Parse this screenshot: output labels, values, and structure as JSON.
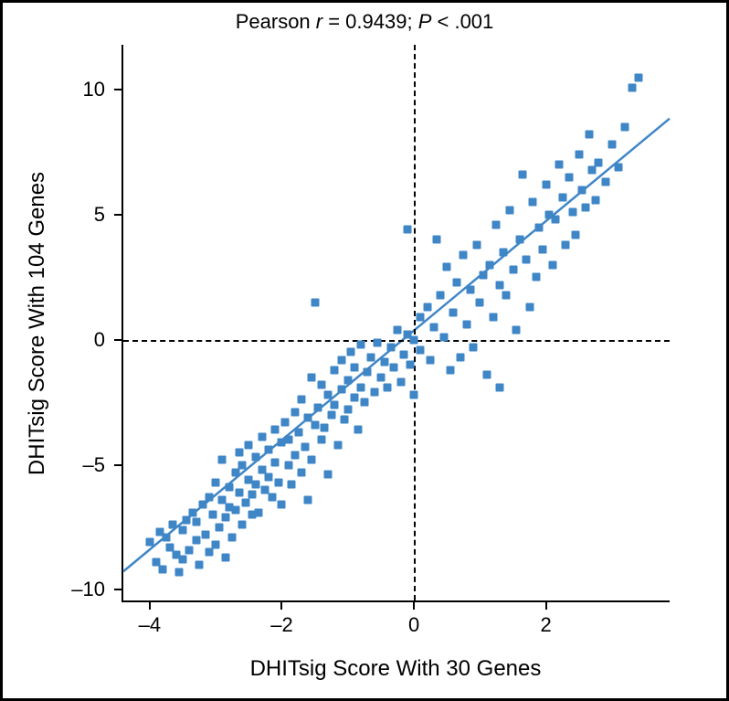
{
  "chart": {
    "type": "scatter",
    "title_parts": {
      "prefix": "Pearson ",
      "r_symbol": "r",
      "r_equals": " = 0.9439; ",
      "p_symbol": "P",
      "p_rest": " < .001"
    },
    "xlabel": "DHITsig Score With 30 Genes",
    "ylabel": "DHITsig Score With 104 Genes",
    "xlim": [
      -4.4,
      3.9
    ],
    "ylim": [
      -10.5,
      11.8
    ],
    "xticks": [
      -4,
      -2,
      0,
      2
    ],
    "yticks": [
      -10,
      -5,
      0,
      5,
      10
    ],
    "label_fontsize": 24,
    "tick_fontsize": 22,
    "title_fontsize": 22,
    "background_color": "#ffffff",
    "axis_color": "#000000",
    "marker_color": "#3f86c7",
    "marker_size": 9,
    "line_color": "#3f86c7",
    "line_width": 2.5,
    "dashed_color": "#000000",
    "regression": {
      "slope": 2.19,
      "intercept": 0.3
    },
    "points": [
      [
        -4.0,
        -8.1
      ],
      [
        -3.9,
        -8.9
      ],
      [
        -3.85,
        -7.7
      ],
      [
        -3.8,
        -9.2
      ],
      [
        -3.75,
        -7.9
      ],
      [
        -3.7,
        -8.3
      ],
      [
        -3.65,
        -7.4
      ],
      [
        -3.6,
        -8.6
      ],
      [
        -3.55,
        -9.3
      ],
      [
        -3.5,
        -7.6
      ],
      [
        -3.5,
        -8.8
      ],
      [
        -3.45,
        -7.2
      ],
      [
        -3.4,
        -8.4
      ],
      [
        -3.35,
        -6.9
      ],
      [
        -3.3,
        -8.0
      ],
      [
        -3.3,
        -7.3
      ],
      [
        -3.25,
        -9.0
      ],
      [
        -3.2,
        -6.6
      ],
      [
        -3.15,
        -7.8
      ],
      [
        -3.1,
        -6.3
      ],
      [
        -3.1,
        -8.5
      ],
      [
        -3.05,
        -7.0
      ],
      [
        -3.0,
        -5.7
      ],
      [
        -3.0,
        -8.2
      ],
      [
        -2.95,
        -7.5
      ],
      [
        -2.9,
        -6.4
      ],
      [
        -2.9,
        -4.8
      ],
      [
        -2.85,
        -7.1
      ],
      [
        -2.85,
        -8.7
      ],
      [
        -2.8,
        -5.9
      ],
      [
        -2.8,
        -6.7
      ],
      [
        -2.75,
        -7.9
      ],
      [
        -2.7,
        -5.3
      ],
      [
        -2.7,
        -6.8
      ],
      [
        -2.65,
        -4.5
      ],
      [
        -2.65,
        -6.1
      ],
      [
        -2.6,
        -7.4
      ],
      [
        -2.6,
        -5.0
      ],
      [
        -2.55,
        -6.5
      ],
      [
        -2.5,
        -5.6
      ],
      [
        -2.5,
        -4.2
      ],
      [
        -2.45,
        -7.0
      ],
      [
        -2.45,
        -6.2
      ],
      [
        -2.4,
        -4.7
      ],
      [
        -2.4,
        -5.8
      ],
      [
        -2.35,
        -6.9
      ],
      [
        -2.3,
        -3.9
      ],
      [
        -2.3,
        -5.2
      ],
      [
        -2.25,
        -6.0
      ],
      [
        -2.2,
        -4.4
      ],
      [
        -2.2,
        -5.5
      ],
      [
        -2.15,
        -6.3
      ],
      [
        -2.1,
        -3.6
      ],
      [
        -2.1,
        -4.9
      ],
      [
        -2.05,
        -5.7
      ],
      [
        -2.0,
        -4.1
      ],
      [
        -2.0,
        -6.6
      ],
      [
        -1.95,
        -3.3
      ],
      [
        -1.9,
        -5.0
      ],
      [
        -1.9,
        -4.0
      ],
      [
        -1.85,
        -5.8
      ],
      [
        -1.8,
        -4.6
      ],
      [
        -1.8,
        -2.9
      ],
      [
        -1.75,
        -3.7
      ],
      [
        -1.7,
        -5.3
      ],
      [
        -1.7,
        -2.4
      ],
      [
        -1.65,
        -4.3
      ],
      [
        -1.6,
        -3.1
      ],
      [
        -1.6,
        -6.4
      ],
      [
        -1.55,
        -1.5
      ],
      [
        -1.55,
        -4.8
      ],
      [
        -1.5,
        -3.4
      ],
      [
        -1.5,
        1.5
      ],
      [
        -1.45,
        -2.7
      ],
      [
        -1.4,
        -4.0
      ],
      [
        -1.4,
        -1.8
      ],
      [
        -1.35,
        -3.5
      ],
      [
        -1.3,
        -2.2
      ],
      [
        -1.3,
        -5.4
      ],
      [
        -1.25,
        -3.0
      ],
      [
        -1.2,
        -1.2
      ],
      [
        -1.2,
        -2.6
      ],
      [
        -1.15,
        -4.2
      ],
      [
        -1.1,
        -2.0
      ],
      [
        -1.1,
        -0.8
      ],
      [
        -1.05,
        -3.2
      ],
      [
        -1.0,
        -1.6
      ],
      [
        -1.0,
        -2.8
      ],
      [
        -0.95,
        -0.5
      ],
      [
        -0.9,
        -2.3
      ],
      [
        -0.9,
        -1.1
      ],
      [
        -0.85,
        -3.6
      ],
      [
        -0.8,
        -1.9
      ],
      [
        -0.8,
        -0.2
      ],
      [
        -0.75,
        -2.5
      ],
      [
        -0.7,
        -1.3
      ],
      [
        -0.65,
        -0.7
      ],
      [
        -0.6,
        -2.1
      ],
      [
        -0.55,
        -0.1
      ],
      [
        -0.5,
        -1.5
      ],
      [
        -0.45,
        -0.9
      ],
      [
        -0.4,
        -1.9
      ],
      [
        -0.35,
        -0.3
      ],
      [
        -0.3,
        -1.1
      ],
      [
        -0.25,
        0.4
      ],
      [
        -0.2,
        -1.7
      ],
      [
        -0.15,
        -0.6
      ],
      [
        -0.1,
        0.2
      ],
      [
        -0.1,
        4.4
      ],
      [
        -0.05,
        -1.0
      ],
      [
        0.0,
        0.0
      ],
      [
        0.0,
        -2.2
      ],
      [
        0.1,
        0.9
      ],
      [
        0.1,
        -0.4
      ],
      [
        0.2,
        1.3
      ],
      [
        0.25,
        -0.8
      ],
      [
        0.3,
        0.5
      ],
      [
        0.35,
        4.0
      ],
      [
        0.4,
        1.8
      ],
      [
        0.45,
        0.1
      ],
      [
        0.5,
        2.9
      ],
      [
        0.55,
        -1.2
      ],
      [
        0.6,
        1.1
      ],
      [
        0.65,
        2.3
      ],
      [
        0.7,
        -0.7
      ],
      [
        0.75,
        3.4
      ],
      [
        0.8,
        0.6
      ],
      [
        0.85,
        2.0
      ],
      [
        0.9,
        -0.3
      ],
      [
        0.95,
        3.8
      ],
      [
        1.0,
        1.5
      ],
      [
        1.05,
        2.6
      ],
      [
        1.1,
        -1.4
      ],
      [
        1.15,
        3.0
      ],
      [
        1.2,
        0.9
      ],
      [
        1.25,
        4.6
      ],
      [
        1.3,
        -1.9
      ],
      [
        1.3,
        2.2
      ],
      [
        1.35,
        3.5
      ],
      [
        1.4,
        1.8
      ],
      [
        1.45,
        5.2
      ],
      [
        1.5,
        2.8
      ],
      [
        1.55,
        0.4
      ],
      [
        1.6,
        4.0
      ],
      [
        1.65,
        6.6
      ],
      [
        1.7,
        3.2
      ],
      [
        1.75,
        1.3
      ],
      [
        1.8,
        5.5
      ],
      [
        1.85,
        2.5
      ],
      [
        1.9,
        4.5
      ],
      [
        1.95,
        3.6
      ],
      [
        2.0,
        6.2
      ],
      [
        2.05,
        5.0
      ],
      [
        2.1,
        3.0
      ],
      [
        2.15,
        4.8
      ],
      [
        2.2,
        7.0
      ],
      [
        2.25,
        5.7
      ],
      [
        2.3,
        3.8
      ],
      [
        2.35,
        6.5
      ],
      [
        2.4,
        5.1
      ],
      [
        2.45,
        4.2
      ],
      [
        2.5,
        7.4
      ],
      [
        2.55,
        6.0
      ],
      [
        2.6,
        5.3
      ],
      [
        2.65,
        8.2
      ],
      [
        2.7,
        6.8
      ],
      [
        2.75,
        5.6
      ],
      [
        2.8,
        7.1
      ],
      [
        2.9,
        6.3
      ],
      [
        3.0,
        7.8
      ],
      [
        3.1,
        6.9
      ],
      [
        3.2,
        8.5
      ],
      [
        3.3,
        10.1
      ],
      [
        3.4,
        10.5
      ]
    ]
  }
}
